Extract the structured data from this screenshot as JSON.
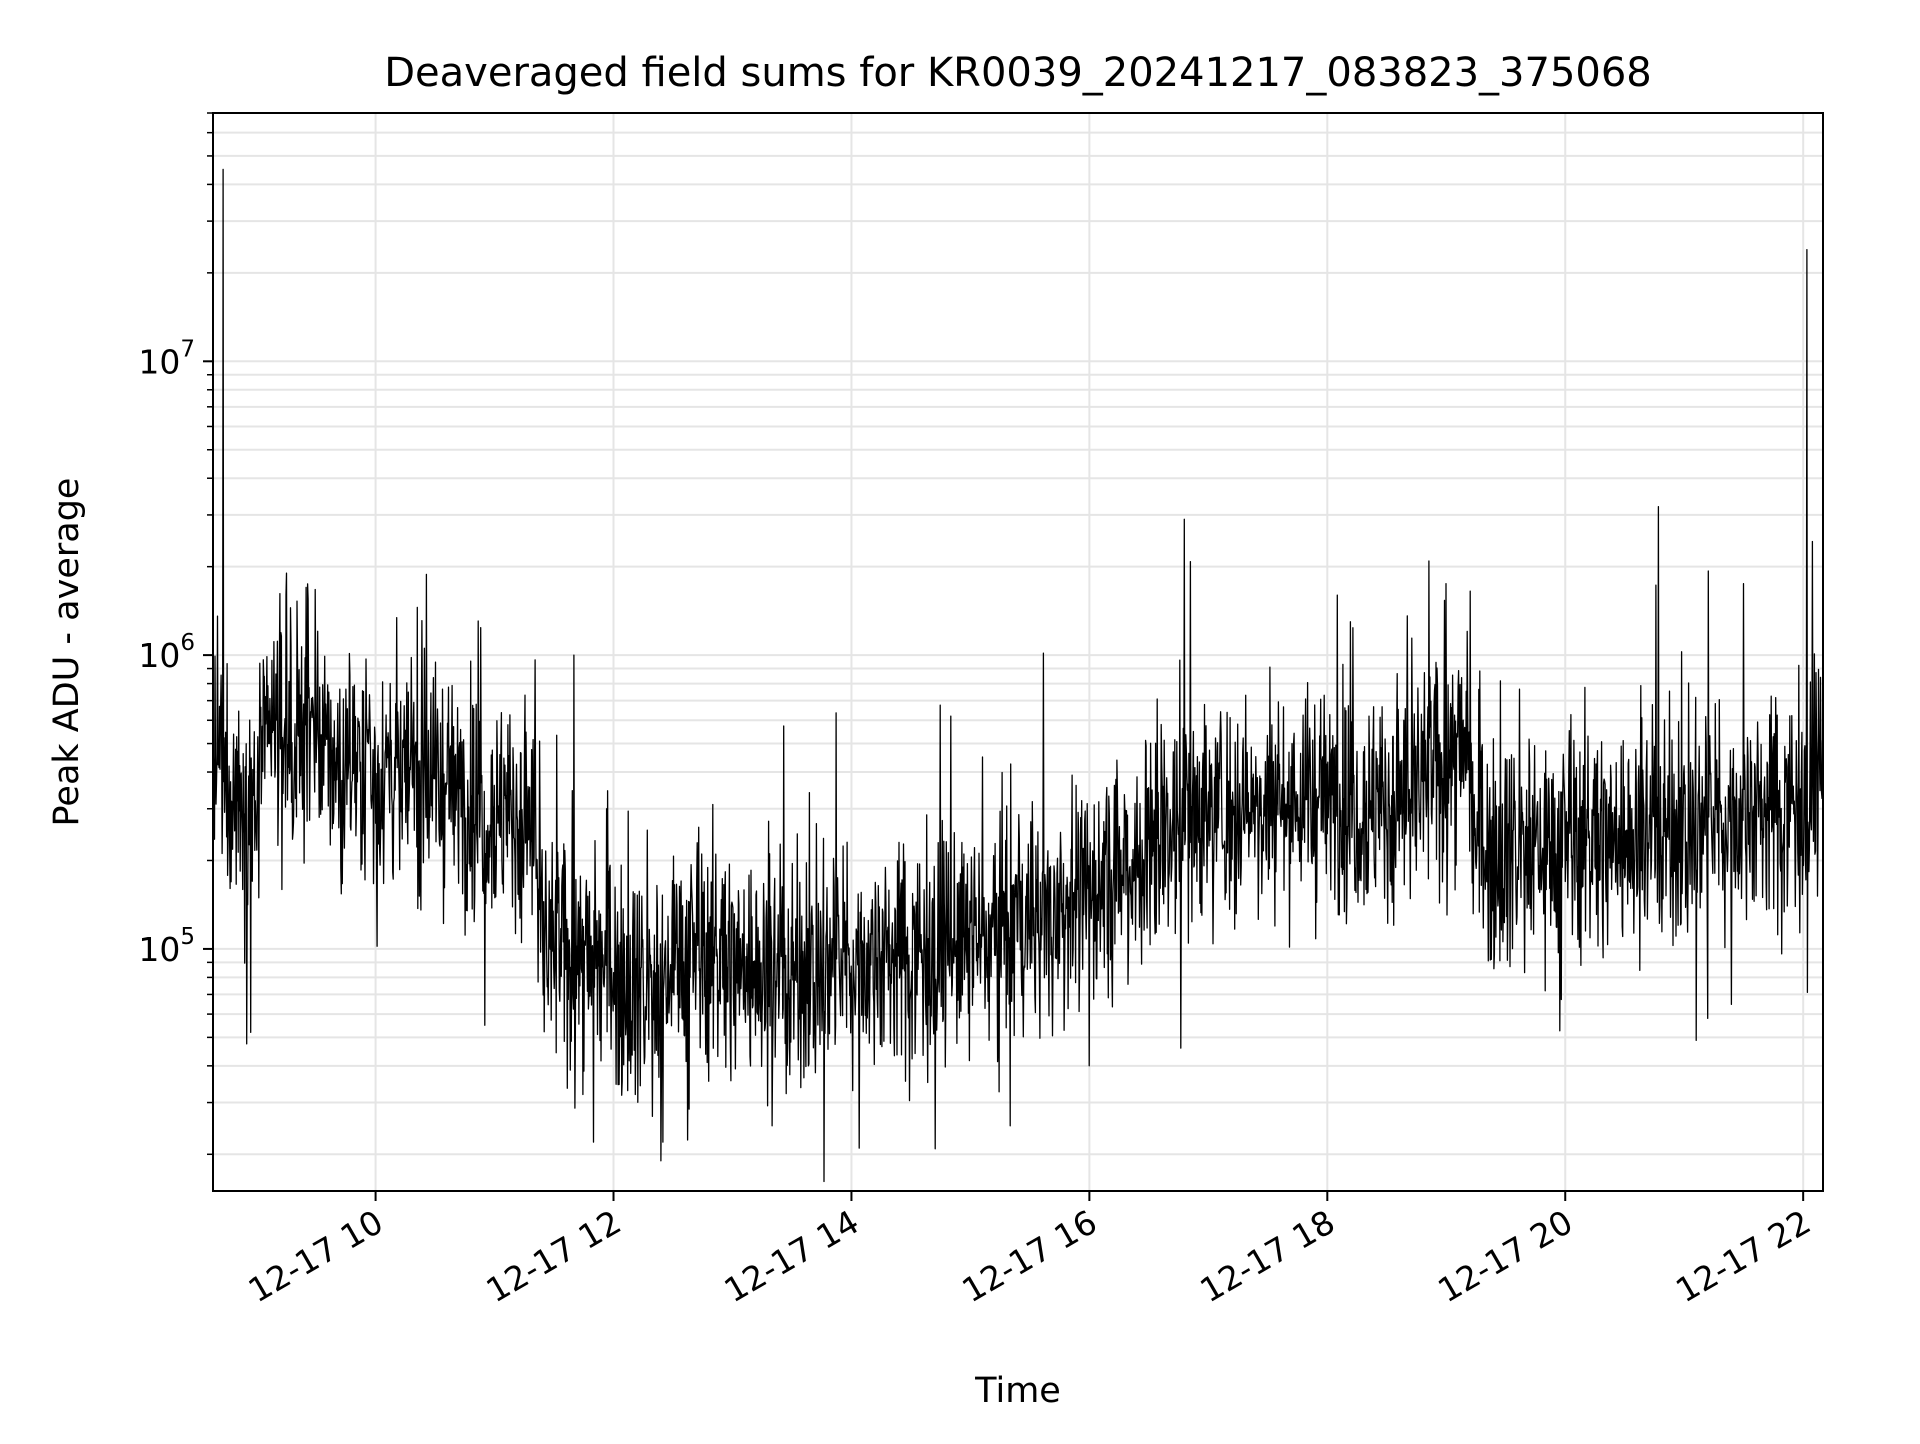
{
  "chart_data": {
    "type": "line",
    "title": "Deaveraged field sums for KR0039_20241217_083823_375068",
    "xlabel": "Time",
    "ylabel": "Peak ADU - average",
    "x_scale": "time",
    "y_scale": "log",
    "xlim": [
      "2024-12-17T08:38",
      "2024-12-17T22:10"
    ],
    "ylim": [
      15000,
      70000000
    ],
    "grid": true,
    "line_color": "#000000",
    "grid_color": "#e5e5e5",
    "x_ticks": [
      {
        "t": "2024-12-17T10:00",
        "label": "12-17 10"
      },
      {
        "t": "2024-12-17T12:00",
        "label": "12-17 12"
      },
      {
        "t": "2024-12-17T14:00",
        "label": "12-17 14"
      },
      {
        "t": "2024-12-17T16:00",
        "label": "12-17 16"
      },
      {
        "t": "2024-12-17T18:00",
        "label": "12-17 18"
      },
      {
        "t": "2024-12-17T20:00",
        "label": "12-17 20"
      },
      {
        "t": "2024-12-17T22:00",
        "label": "12-17 22"
      }
    ],
    "y_ticks": [
      {
        "v": 100000,
        "base": "10",
        "exp": "5"
      },
      {
        "v": 1000000,
        "base": "10",
        "exp": "6"
      },
      {
        "v": 10000000,
        "base": "10",
        "exp": "7"
      }
    ],
    "series": [
      {
        "name": "",
        "trend": [
          [
            "2024-12-17T08:38",
            400000
          ],
          [
            "2024-12-17T09:00",
            300000
          ],
          [
            "2024-12-17T09:05",
            550000
          ],
          [
            "2024-12-17T09:30",
            480000
          ],
          [
            "2024-12-17T10:00",
            420000
          ],
          [
            "2024-12-17T10:30",
            380000
          ],
          [
            "2024-12-17T11:00",
            300000
          ],
          [
            "2024-12-17T11:20",
            260000
          ],
          [
            "2024-12-17T11:25",
            100000
          ],
          [
            "2024-12-17T12:00",
            85000
          ],
          [
            "2024-12-17T12:25",
            70000
          ],
          [
            "2024-12-17T12:30",
            100000
          ],
          [
            "2024-12-17T13:00",
            90000
          ],
          [
            "2024-12-17T13:30",
            80000
          ],
          [
            "2024-12-17T14:00",
            90000
          ],
          [
            "2024-12-17T14:30",
            100000
          ],
          [
            "2024-12-17T15:00",
            105000
          ],
          [
            "2024-12-17T15:30",
            120000
          ],
          [
            "2024-12-17T16:00",
            160000
          ],
          [
            "2024-12-17T16:30",
            220000
          ],
          [
            "2024-12-17T16:50",
            300000
          ],
          [
            "2024-12-17T17:30",
            310000
          ],
          [
            "2024-12-17T18:00",
            330000
          ],
          [
            "2024-12-17T18:30",
            300000
          ],
          [
            "2024-12-17T19:00",
            420000
          ],
          [
            "2024-12-17T19:10",
            500000
          ],
          [
            "2024-12-17T19:15",
            220000
          ],
          [
            "2024-12-17T20:00",
            230000
          ],
          [
            "2024-12-17T20:30",
            240000
          ],
          [
            "2024-12-17T21:00",
            250000
          ],
          [
            "2024-12-17T21:30",
            290000
          ],
          [
            "2024-12-17T22:00",
            330000
          ],
          [
            "2024-12-17T22:10",
            420000
          ]
        ],
        "spikes": [
          [
            "2024-12-17T08:43",
            45000000
          ],
          [
            "2024-12-17T09:15",
            1900000
          ],
          [
            "2024-12-17T09:25",
            1700000
          ],
          [
            "2024-12-17T08:57",
            52000
          ],
          [
            "2024-12-17T16:48",
            2900000
          ],
          [
            "2024-12-17T18:05",
            1600000
          ],
          [
            "2024-12-17T19:00",
            1750000
          ],
          [
            "2024-12-17T19:12",
            1650000
          ],
          [
            "2024-12-17T20:47",
            3200000
          ],
          [
            "2024-12-17T21:30",
            1750000
          ],
          [
            "2024-12-17T22:02",
            24000000
          ],
          [
            "2024-12-17T12:24",
            19000
          ],
          [
            "2024-12-17T12:25",
            22000
          ],
          [
            "2024-12-17T11:50",
            22000
          ],
          [
            "2024-12-17T21:12",
            58000
          ],
          [
            "2024-12-17T11:40",
            1000000
          ],
          [
            "2024-12-17T14:50",
            620000
          ],
          [
            "2024-12-17T10:55",
            55000
          ],
          [
            "2024-12-17T19:50",
            72000
          ],
          [
            "2024-12-17T16:00",
            40000
          ],
          [
            "2024-12-17T15:20",
            25000
          ],
          [
            "2024-12-17T13:20",
            25000
          ]
        ]
      }
    ]
  }
}
